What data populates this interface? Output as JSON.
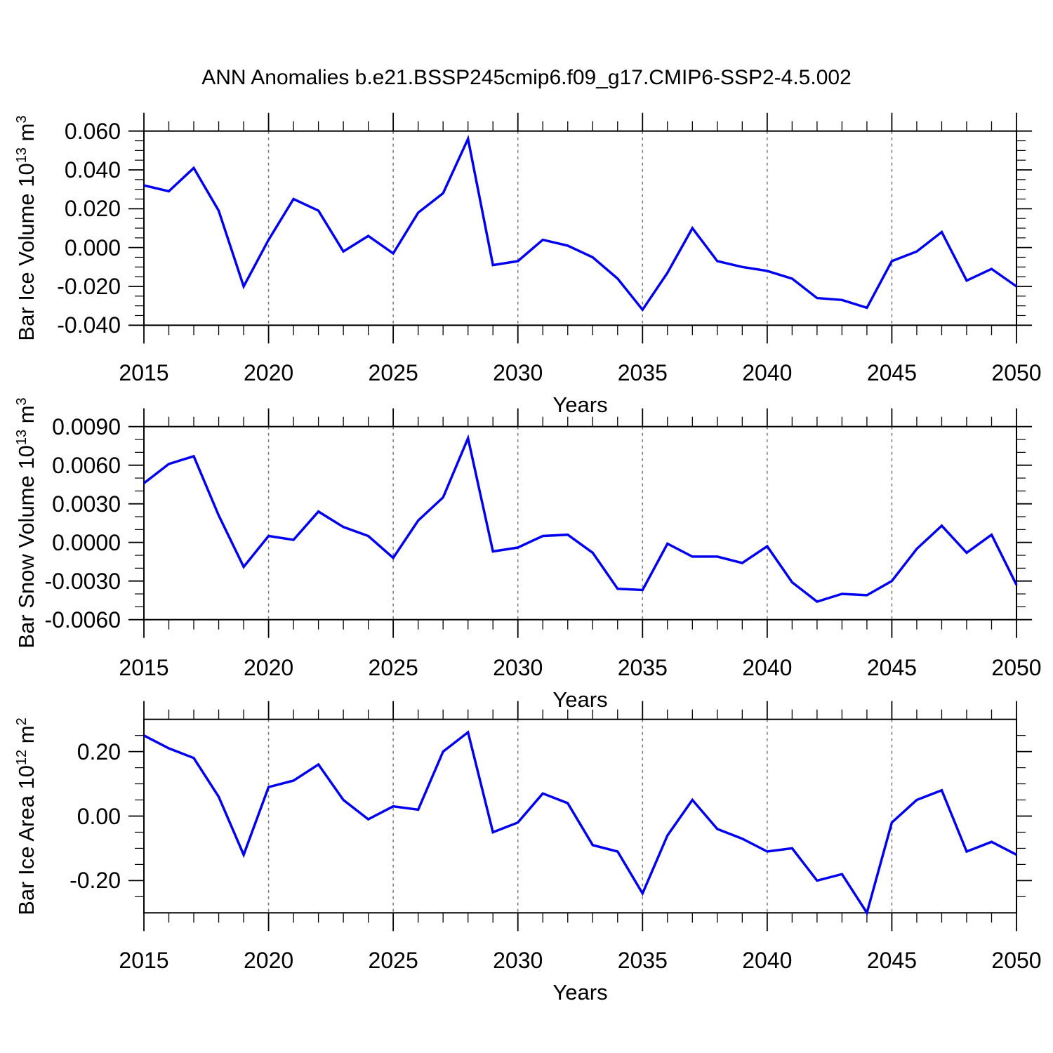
{
  "title": "ANN Anomalies b.e21.BSSP245cmip6.f09_g17.CMIP6-SSP2-4.5.002",
  "xlabel": "Years",
  "colors": {
    "line": "#0000EE",
    "grid": "#777777",
    "frame": "#000000"
  },
  "x_major_ticks": [
    "2015",
    "2020",
    "2025",
    "2030",
    "2035",
    "2040",
    "2045",
    "2050"
  ],
  "chart_data": [
    {
      "type": "line",
      "title": "Bar Ice Volume 10^13 m^3",
      "ylabel_parts": {
        "text": "Bar Ice Volume 10",
        "exp": "13",
        "unit": " m",
        "unit_exp": "3"
      },
      "xlabel": "Years",
      "ylim": [
        -0.04,
        0.06
      ],
      "xlim": [
        2015,
        2050
      ],
      "ytick_labels": [
        "0.060",
        "0.040",
        "0.020",
        "0.000",
        "-0.020",
        "-0.040"
      ],
      "ytick_values": [
        0.06,
        0.04,
        0.02,
        0.0,
        -0.02,
        -0.04
      ],
      "y_minor_step": 0.005,
      "x_major_step": 5,
      "x_minor_step": 1,
      "grid": "vertical-dashed-at-x-majors",
      "legend": "none",
      "x": [
        2015,
        2016,
        2017,
        2018,
        2019,
        2020,
        2021,
        2022,
        2023,
        2024,
        2025,
        2026,
        2027,
        2028,
        2029,
        2030,
        2031,
        2032,
        2033,
        2034,
        2035,
        2036,
        2037,
        2038,
        2039,
        2040,
        2041,
        2042,
        2043,
        2044,
        2045,
        2046,
        2047,
        2048,
        2049,
        2050
      ],
      "values": [
        0.032,
        0.029,
        0.041,
        0.019,
        -0.02,
        0.004,
        0.025,
        0.019,
        -0.002,
        0.006,
        -0.003,
        0.018,
        0.028,
        0.056,
        -0.009,
        -0.007,
        0.004,
        0.001,
        -0.005,
        -0.016,
        -0.032,
        -0.013,
        0.01,
        -0.007,
        -0.01,
        -0.012,
        -0.016,
        -0.026,
        -0.027,
        -0.031,
        -0.007,
        -0.002,
        0.008,
        -0.017,
        -0.011,
        -0.02
      ]
    },
    {
      "type": "line",
      "title": "Bar Snow Volume 10^13 m^3",
      "ylabel_parts": {
        "text": "Bar Snow Volume 10",
        "exp": "13",
        "unit": " m",
        "unit_exp": "3"
      },
      "xlabel": "Years",
      "ylim": [
        -0.006,
        0.009
      ],
      "xlim": [
        2015,
        2050
      ],
      "ytick_labels": [
        "0.0090",
        "0.0060",
        "0.0030",
        "0.0000",
        "-0.0030",
        "-0.0060"
      ],
      "ytick_values": [
        0.009,
        0.006,
        0.003,
        0.0,
        -0.003,
        -0.006
      ],
      "y_minor_step": 0.001,
      "x_major_step": 5,
      "x_minor_step": 1,
      "grid": "vertical-dashed-at-x-majors",
      "legend": "none",
      "x": [
        2015,
        2016,
        2017,
        2018,
        2019,
        2020,
        2021,
        2022,
        2023,
        2024,
        2025,
        2026,
        2027,
        2028,
        2029,
        2030,
        2031,
        2032,
        2033,
        2034,
        2035,
        2036,
        2037,
        2038,
        2039,
        2040,
        2041,
        2042,
        2043,
        2044,
        2045,
        2046,
        2047,
        2048,
        2049,
        2050
      ],
      "values": [
        0.0046,
        0.0061,
        0.0067,
        0.0021,
        -0.0019,
        0.0005,
        0.0002,
        0.0024,
        0.0012,
        0.0005,
        -0.0012,
        0.0017,
        0.0035,
        0.0081,
        -0.0007,
        -0.0004,
        0.0005,
        0.0006,
        -0.0008,
        -0.0036,
        -0.0037,
        -0.0001,
        -0.0011,
        -0.0011,
        -0.0016,
        -0.0003,
        -0.0031,
        -0.0046,
        -0.004,
        -0.0041,
        -0.003,
        -0.0005,
        0.0013,
        -0.0008,
        0.0006,
        -0.0033
      ]
    },
    {
      "type": "line",
      "title": "Bar Ice Area 10^12 m^2",
      "ylabel_parts": {
        "text": "Bar Ice Area 10",
        "exp": "12",
        "unit": " m",
        "unit_exp": "2"
      },
      "xlabel": "Years",
      "ylim": [
        -0.3,
        0.3
      ],
      "xlim": [
        2015,
        2050
      ],
      "ytick_labels": [
        "0.20",
        "0.00",
        "-0.20"
      ],
      "ytick_values": [
        0.2,
        0.0,
        -0.2
      ],
      "y_minor_step": 0.05,
      "x_major_step": 5,
      "x_minor_step": 1,
      "grid": "vertical-dashed-at-x-majors",
      "legend": "none",
      "x": [
        2015,
        2016,
        2017,
        2018,
        2019,
        2020,
        2021,
        2022,
        2023,
        2024,
        2025,
        2026,
        2027,
        2028,
        2029,
        2030,
        2031,
        2032,
        2033,
        2034,
        2035,
        2036,
        2037,
        2038,
        2039,
        2040,
        2041,
        2042,
        2043,
        2044,
        2045,
        2046,
        2047,
        2048,
        2049,
        2050
      ],
      "values": [
        0.25,
        0.21,
        0.18,
        0.06,
        -0.12,
        0.09,
        0.11,
        0.16,
        0.05,
        -0.01,
        0.03,
        0.02,
        0.2,
        0.26,
        -0.05,
        -0.02,
        0.07,
        0.04,
        -0.09,
        -0.11,
        -0.24,
        -0.06,
        0.05,
        -0.04,
        -0.07,
        -0.11,
        -0.1,
        -0.2,
        -0.18,
        -0.3,
        -0.02,
        0.05,
        0.08,
        -0.11,
        -0.08,
        -0.12
      ]
    }
  ]
}
